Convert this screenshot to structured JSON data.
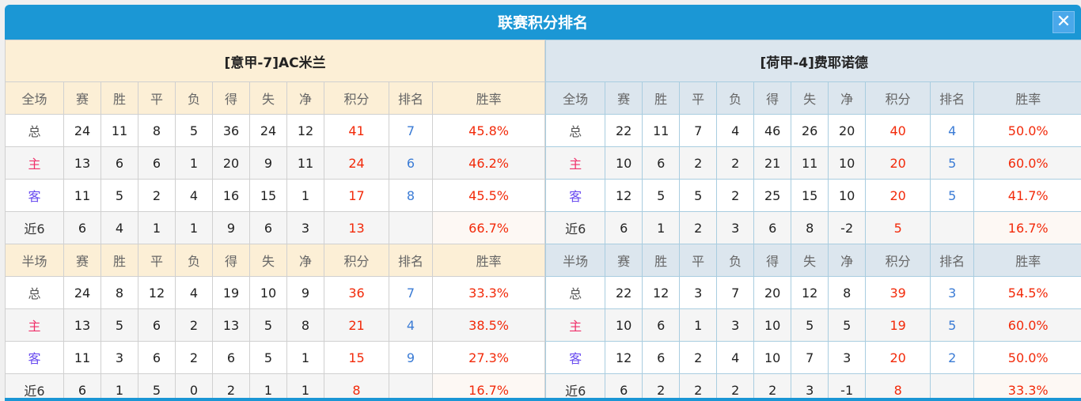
{
  "title": "联赛积分排名",
  "close_icon": "close-icon",
  "colors": {
    "header_bar": "#1b97d5",
    "points": "#f22a0a",
    "rank": "#3a7bd5",
    "rate": "#f22a0a"
  },
  "columns_full": [
    "全场",
    "赛",
    "胜",
    "平",
    "负",
    "得",
    "失",
    "净",
    "积分",
    "排名",
    "胜率"
  ],
  "columns_half": [
    "半场",
    "赛",
    "胜",
    "平",
    "负",
    "得",
    "失",
    "净",
    "积分",
    "排名",
    "胜率"
  ],
  "teams": [
    {
      "name": "[意甲-7]AC米兰",
      "full": [
        [
          "总",
          "24",
          "11",
          "8",
          "5",
          "36",
          "24",
          "12",
          "41",
          "7",
          "45.8%"
        ],
        [
          "主",
          "13",
          "6",
          "6",
          "1",
          "20",
          "9",
          "11",
          "24",
          "6",
          "46.2%"
        ],
        [
          "客",
          "11",
          "5",
          "2",
          "4",
          "16",
          "15",
          "1",
          "17",
          "8",
          "45.5%"
        ],
        [
          "近6",
          "6",
          "4",
          "1",
          "1",
          "9",
          "6",
          "3",
          "13",
          "",
          "66.7%"
        ]
      ],
      "half": [
        [
          "总",
          "24",
          "8",
          "12",
          "4",
          "19",
          "10",
          "9",
          "36",
          "7",
          "33.3%"
        ],
        [
          "主",
          "13",
          "5",
          "6",
          "2",
          "13",
          "5",
          "8",
          "21",
          "4",
          "38.5%"
        ],
        [
          "客",
          "11",
          "3",
          "6",
          "2",
          "6",
          "5",
          "1",
          "15",
          "9",
          "27.3%"
        ],
        [
          "近6",
          "6",
          "1",
          "5",
          "0",
          "2",
          "1",
          "1",
          "8",
          "",
          "16.7%"
        ]
      ]
    },
    {
      "name": "[荷甲-4]费耶诺德",
      "full": [
        [
          "总",
          "22",
          "11",
          "7",
          "4",
          "46",
          "26",
          "20",
          "40",
          "4",
          "50.0%"
        ],
        [
          "主",
          "10",
          "6",
          "2",
          "2",
          "21",
          "11",
          "10",
          "20",
          "5",
          "60.0%"
        ],
        [
          "客",
          "12",
          "5",
          "5",
          "2",
          "25",
          "15",
          "10",
          "20",
          "5",
          "41.7%"
        ],
        [
          "近6",
          "6",
          "1",
          "2",
          "3",
          "6",
          "8",
          "-2",
          "5",
          "",
          "16.7%"
        ]
      ],
      "half": [
        [
          "总",
          "22",
          "12",
          "3",
          "7",
          "20",
          "12",
          "8",
          "39",
          "3",
          "54.5%"
        ],
        [
          "主",
          "10",
          "6",
          "1",
          "3",
          "10",
          "5",
          "5",
          "19",
          "5",
          "60.0%"
        ],
        [
          "客",
          "12",
          "6",
          "2",
          "4",
          "10",
          "7",
          "3",
          "20",
          "2",
          "50.0%"
        ],
        [
          "近6",
          "6",
          "2",
          "2",
          "2",
          "2",
          "3",
          "-1",
          "8",
          "",
          "33.3%"
        ]
      ]
    }
  ]
}
